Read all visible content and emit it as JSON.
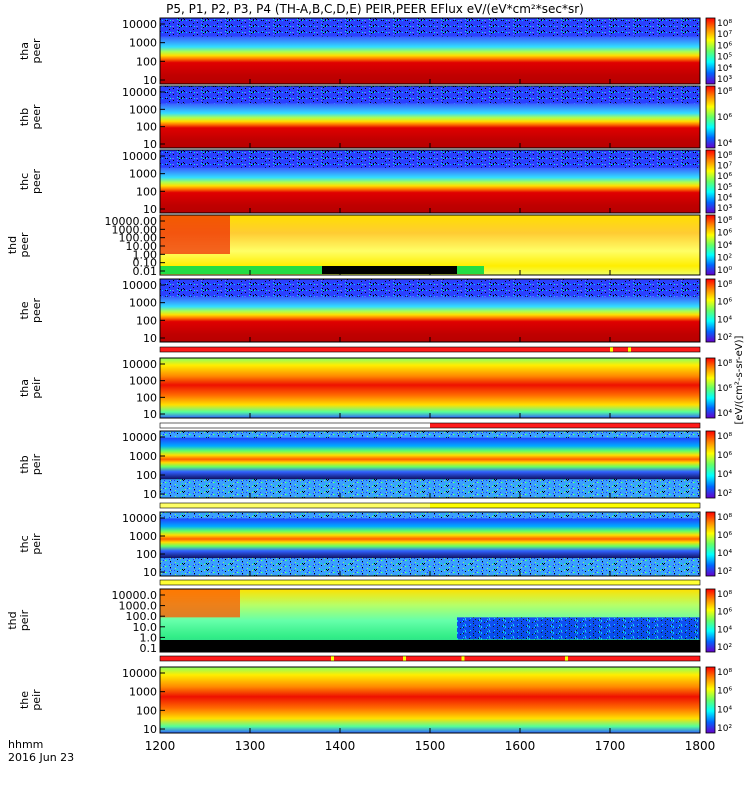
{
  "title": "P5, P1, P2, P3, P4 (TH-A,B,C,D,E) PEIR,PEER EFlux eV/(eV*cm²*sec*sr)",
  "colorbar_label": "[eV/(cm²-s-sr-eV)]",
  "time_axis": {
    "label_line1": "hhmm",
    "label_line2": "2016 Jun 23",
    "ticks": [
      "1200",
      "1300",
      "1400",
      "1500",
      "1600",
      "1700",
      "1800"
    ]
  },
  "chart_data": [
    {
      "type": "heatmap",
      "probe": "tha",
      "species": "peer",
      "ylabel": [
        "tha",
        "peer"
      ],
      "yticks": [
        "10000",
        "1000",
        "100",
        "10"
      ],
      "cbar_ticks": [
        "10⁸",
        "10⁷",
        "10⁶",
        "10⁵",
        "10⁴",
        "10³"
      ],
      "x": [
        1200,
        1800
      ],
      "ylim": [
        10,
        20000
      ],
      "log": true
    },
    {
      "type": "heatmap",
      "probe": "thb",
      "species": "peer",
      "ylabel": [
        "thb",
        "peer"
      ],
      "yticks": [
        "10000",
        "1000",
        "100",
        "10"
      ],
      "cbar_ticks": [
        "10⁸",
        "10⁶",
        "10⁴"
      ],
      "x": [
        1200,
        1800
      ],
      "ylim": [
        10,
        20000
      ],
      "log": true
    },
    {
      "type": "heatmap",
      "probe": "thc",
      "species": "peer",
      "ylabel": [
        "thc",
        "peer"
      ],
      "yticks": [
        "10000",
        "1000",
        "100",
        "10"
      ],
      "cbar_ticks": [
        "10⁸",
        "10⁷",
        "10⁶",
        "10⁵",
        "10⁴",
        "10³"
      ],
      "x": [
        1200,
        1800
      ],
      "ylim": [
        10,
        20000
      ],
      "log": true
    },
    {
      "type": "heatmap",
      "probe": "thd",
      "species": "peer",
      "ylabel": [
        "thd",
        "peer"
      ],
      "yticks": [
        "10000.00",
        "1000.00",
        "100.00",
        "10.00",
        "1.00",
        "0.10",
        "0.01"
      ],
      "cbar_ticks": [
        "10⁸",
        "10⁶",
        "10⁴",
        "10²",
        "10⁰"
      ],
      "x": [
        1200,
        1800
      ],
      "ylim": [
        0.01,
        20000
      ],
      "log": true
    },
    {
      "type": "heatmap",
      "probe": "the",
      "species": "peer",
      "ylabel": [
        "the",
        "peer"
      ],
      "yticks": [
        "10000",
        "1000",
        "100",
        "10"
      ],
      "cbar_ticks": [
        "10⁸",
        "10⁶",
        "10⁴",
        "10²"
      ],
      "x": [
        1200,
        1800
      ],
      "ylim": [
        10,
        20000
      ],
      "log": true
    },
    {
      "type": "heatmap",
      "probe": "tha",
      "species": "peir",
      "ylabel": [
        "tha",
        "peir"
      ],
      "yticks": [
        "10000",
        "1000",
        "100",
        "10"
      ],
      "cbar_ticks": [
        "10⁸",
        "10⁶",
        "10⁴"
      ],
      "x": [
        1200,
        1800
      ],
      "ylim": [
        10,
        20000
      ],
      "log": true
    },
    {
      "type": "heatmap",
      "probe": "thb",
      "species": "peir",
      "ylabel": [
        "thb",
        "peir"
      ],
      "yticks": [
        "10000",
        "1000",
        "100",
        "10"
      ],
      "cbar_ticks": [
        "10⁸",
        "10⁶",
        "10⁴",
        "10²"
      ],
      "x": [
        1200,
        1800
      ],
      "ylim": [
        10,
        20000
      ],
      "log": true
    },
    {
      "type": "heatmap",
      "probe": "thc",
      "species": "peir",
      "ylabel": [
        "thc",
        "peir"
      ],
      "yticks": [
        "10000",
        "1000",
        "100",
        "10"
      ],
      "cbar_ticks": [
        "10⁸",
        "10⁶",
        "10⁴",
        "10²"
      ],
      "x": [
        1200,
        1800
      ],
      "ylim": [
        10,
        20000
      ],
      "log": true
    },
    {
      "type": "heatmap",
      "probe": "thd",
      "species": "peir",
      "ylabel": [
        "thd",
        "peir"
      ],
      "yticks": [
        "10000.0",
        "1000.0",
        "100.0",
        "10.0",
        "1.0",
        "0.1"
      ],
      "cbar_ticks": [
        "10⁸",
        "10⁶",
        "10⁴",
        "10²"
      ],
      "x": [
        1200,
        1800
      ],
      "ylim": [
        0.1,
        20000
      ],
      "log": true
    },
    {
      "type": "heatmap",
      "probe": "the",
      "species": "peir",
      "ylabel": [
        "the",
        "peir"
      ],
      "yticks": [
        "10000",
        "1000",
        "100",
        "10"
      ],
      "cbar_ticks": [
        "10⁸",
        "10⁶",
        "10⁴",
        "10²"
      ],
      "x": [
        1200,
        1800
      ],
      "ylim": [
        10,
        20000
      ],
      "log": true
    }
  ],
  "colors": {
    "band_peak": "#c80000",
    "background_low": "#1a2cff",
    "colorbar_stops": [
      "#ff0000",
      "#ff8800",
      "#ffff00",
      "#66ff66",
      "#00ffff",
      "#0066ff",
      "#6600cc"
    ]
  }
}
